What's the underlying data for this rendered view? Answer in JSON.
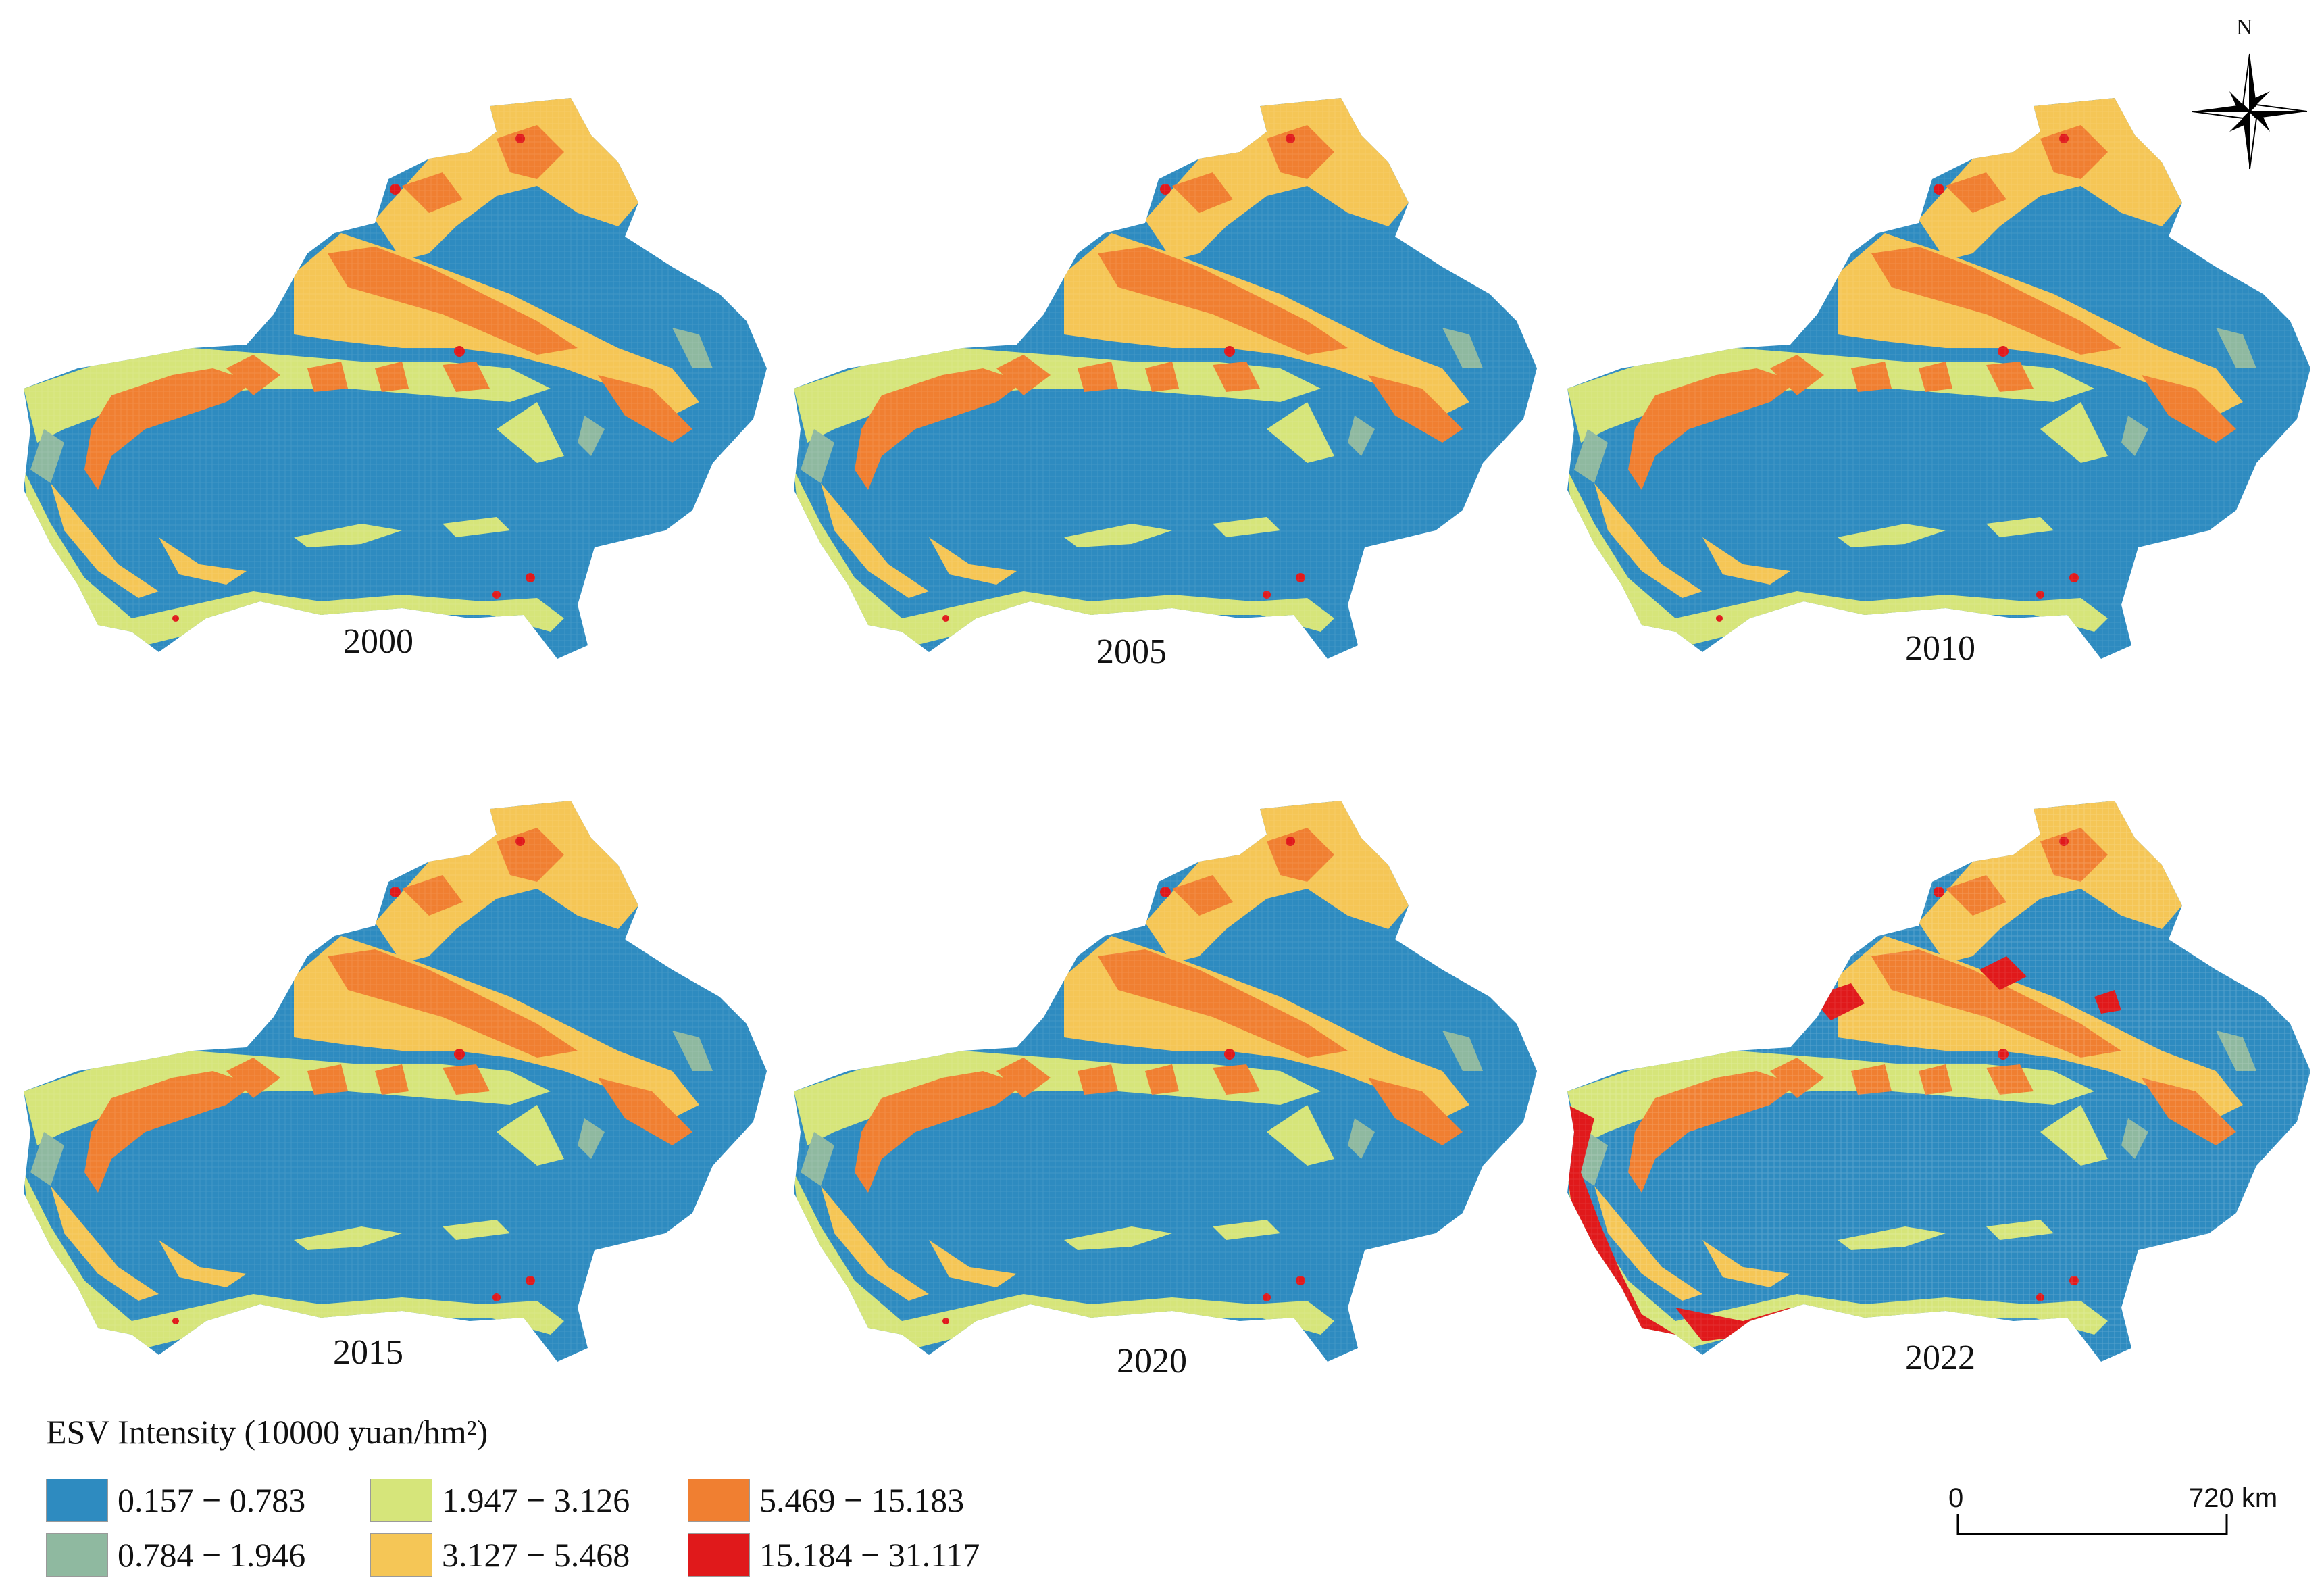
{
  "panels": [
    {
      "year": "2000",
      "variant": "base"
    },
    {
      "year": "2005",
      "variant": "base"
    },
    {
      "year": "2010",
      "variant": "base"
    },
    {
      "year": "2015",
      "variant": "base"
    },
    {
      "year": "2020",
      "variant": "base"
    },
    {
      "year": "2022",
      "variant": "high-west"
    }
  ],
  "legend": {
    "title": "ESV Intensity (10000 yuan/hm²)",
    "classes": [
      {
        "range": "0.157 − 0.783",
        "color": "#2e8bc0"
      },
      {
        "range": "0.784 − 1.946",
        "color": "#8fb9a0"
      },
      {
        "range": "1.947 − 3.126",
        "color": "#d6e57a"
      },
      {
        "range": "3.127 − 5.468",
        "color": "#f5c656"
      },
      {
        "range": "5.469 − 15.183",
        "color": "#f07f31"
      },
      {
        "range": "15.184 − 31.117",
        "color": "#e0191b"
      }
    ]
  },
  "scale_bar": {
    "start": "0",
    "end": "720 km"
  },
  "north_arrow": {
    "label": "N"
  }
}
